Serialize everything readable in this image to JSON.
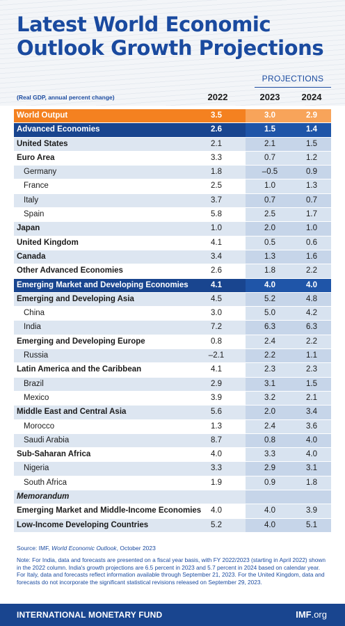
{
  "title_line1": "Latest World Economic",
  "title_line2": "Outlook Growth Projections",
  "projections_label": "PROJECTIONS",
  "subtitle": "(Real GDP, annual percent change)",
  "years": [
    "2022",
    "2023",
    "2024"
  ],
  "rows": [
    {
      "label": "World Output",
      "values": [
        "3.5",
        "3.0",
        "2.9"
      ]
    },
    {
      "label": "Advanced Economies",
      "values": [
        "2.6",
        "1.5",
        "1.4"
      ]
    },
    {
      "label": "United States",
      "values": [
        "2.1",
        "2.1",
        "1.5"
      ]
    },
    {
      "label": "Euro Area",
      "values": [
        "3.3",
        "0.7",
        "1.2"
      ]
    },
    {
      "label": "Germany",
      "values": [
        "1.8",
        "–0.5",
        "0.9"
      ]
    },
    {
      "label": "France",
      "values": [
        "2.5",
        "1.0",
        "1.3"
      ]
    },
    {
      "label": "Italy",
      "values": [
        "3.7",
        "0.7",
        "0.7"
      ]
    },
    {
      "label": "Spain",
      "values": [
        "5.8",
        "2.5",
        "1.7"
      ]
    },
    {
      "label": "Japan",
      "values": [
        "1.0",
        "2.0",
        "1.0"
      ]
    },
    {
      "label": "United Kingdom",
      "values": [
        "4.1",
        "0.5",
        "0.6"
      ]
    },
    {
      "label": "Canada",
      "values": [
        "3.4",
        "1.3",
        "1.6"
      ]
    },
    {
      "label": "Other Advanced Economies",
      "values": [
        "2.6",
        "1.8",
        "2.2"
      ]
    },
    {
      "label": "Emerging Market and Developing Economies",
      "values": [
        "4.1",
        "4.0",
        "4.0"
      ]
    },
    {
      "label": "Emerging and Developing Asia",
      "values": [
        "4.5",
        "5.2",
        "4.8"
      ]
    },
    {
      "label": "China",
      "values": [
        "3.0",
        "5.0",
        "4.2"
      ]
    },
    {
      "label": "India",
      "values": [
        "7.2",
        "6.3",
        "6.3"
      ]
    },
    {
      "label": "Emerging and Developing Europe",
      "values": [
        "0.8",
        "2.4",
        "2.2"
      ]
    },
    {
      "label": "Russia",
      "values": [
        "–2.1",
        "2.2",
        "1.1"
      ]
    },
    {
      "label": "Latin America and the Caribbean",
      "values": [
        "4.1",
        "2.3",
        "2.3"
      ]
    },
    {
      "label": "Brazil",
      "values": [
        "2.9",
        "3.1",
        "1.5"
      ]
    },
    {
      "label": "Mexico",
      "values": [
        "3.9",
        "3.2",
        "2.1"
      ]
    },
    {
      "label": "Middle East and Central Asia",
      "values": [
        "5.6",
        "2.0",
        "3.4"
      ]
    },
    {
      "label": "Morocco",
      "values": [
        "1.3",
        "2.4",
        "3.6"
      ]
    },
    {
      "label": "Saudi Arabia",
      "values": [
        "8.7",
        "0.8",
        "4.0"
      ]
    },
    {
      "label": "Sub-Saharan Africa",
      "values": [
        "4.0",
        "3.3",
        "4.0"
      ]
    },
    {
      "label": "Nigeria",
      "values": [
        "3.3",
        "2.9",
        "3.1"
      ]
    },
    {
      "label": "South Africa",
      "values": [
        "1.9",
        "0.9",
        "1.8"
      ]
    },
    {
      "label": "Memorandum",
      "values": [
        "",
        "",
        ""
      ]
    },
    {
      "label": "Emerging Market and Middle-Income Economies",
      "values": [
        "4.0",
        "4.0",
        "3.9"
      ]
    },
    {
      "label": "Low-Income Developing Countries",
      "values": [
        "5.2",
        "4.0",
        "5.1"
      ]
    }
  ],
  "source_prefix": "Source: IMF, ",
  "source_title": "World Economic Outlook",
  "source_suffix": ", October 2023",
  "note": "Note: For India, data and forecasts are presented on a fiscal year basis, with FY 2022/2023 (starting in April 2022) shown in the 2022 column. India's growth projections are 6.5 percent in 2023 and 5.7 percent in 2024 based on calendar year. For Italy, data and forecasts reflect information available through September 21, 2023. For the United Kingdom, data and forecasts do not incorporate the significant statistical revisions released on September 29, 2023.",
  "footer_org": "INTERNATIONAL MONETARY FUND",
  "footer_site_bold": "IMF",
  "footer_site_rest": ".org",
  "colors": {
    "brand_blue": "#1a4a9f",
    "navy_row": "#19458f",
    "orange_row": "#f48120",
    "light_row": "#dde6f1"
  }
}
